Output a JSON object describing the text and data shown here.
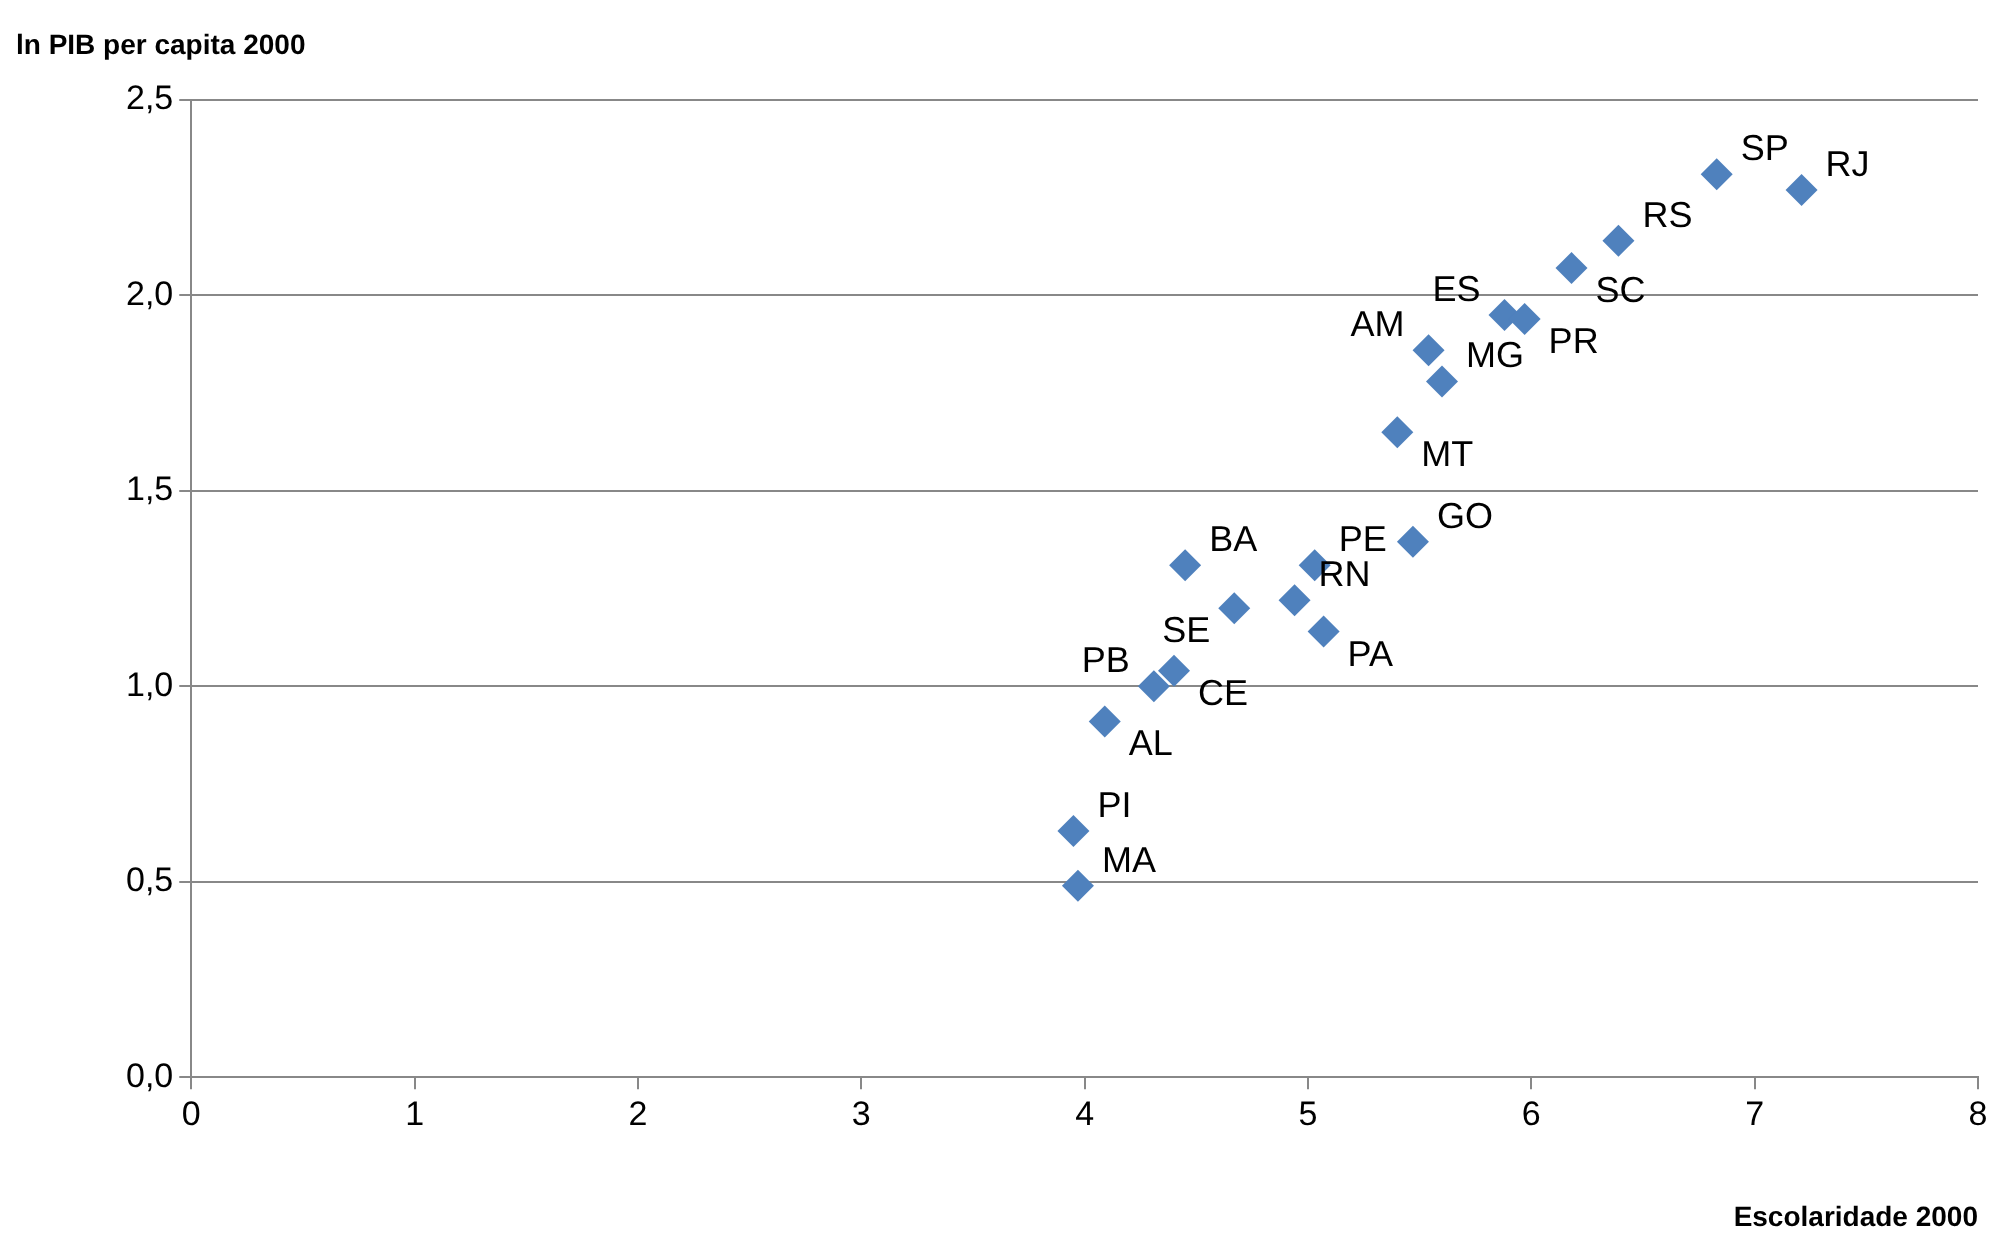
{
  "chart_data": {
    "type": "scatter",
    "xlabel": "Escolaridade 2000",
    "ylabel": "ln PIB per capita 2000",
    "series": [
      {
        "color": "#4f81bd",
        "x": [
          6.83,
          7.21,
          6.39,
          6.18,
          5.88,
          5.97,
          5.54,
          5.6,
          5.4,
          5.47,
          5.03,
          4.45,
          4.67,
          4.94,
          5.07,
          4.4,
          4.31,
          4.09,
          3.95,
          3.97
        ],
        "values": [
          2.31,
          2.27,
          2.14,
          2.07,
          1.95,
          1.94,
          1.86,
          1.78,
          1.65,
          1.37,
          1.31,
          1.31,
          1.2,
          1.22,
          1.14,
          1.04,
          1.0,
          0.91,
          0.63,
          0.49
        ]
      }
    ],
    "annotations": [
      {
        "text": "SP",
        "x": 6.83,
        "y": 2.31
      },
      {
        "text": "RJ",
        "x": 7.21,
        "y": 2.27
      },
      {
        "text": "RS",
        "x": 6.39,
        "y": 2.14
      },
      {
        "text": "SC",
        "x": 6.18,
        "y": 2.07
      },
      {
        "text": "ES",
        "x": 5.88,
        "y": 1.95
      },
      {
        "text": "PR",
        "x": 5.97,
        "y": 1.94
      },
      {
        "text": "AM",
        "x": 5.54,
        "y": 1.86
      },
      {
        "text": "MG",
        "x": 5.6,
        "y": 1.78
      },
      {
        "text": "MT",
        "x": 5.4,
        "y": 1.65
      },
      {
        "text": "GO",
        "x": 5.47,
        "y": 1.37
      },
      {
        "text": "PE",
        "x": 5.03,
        "y": 1.31
      },
      {
        "text": "BA",
        "x": 4.45,
        "y": 1.31
      },
      {
        "text": "SE",
        "x": 4.67,
        "y": 1.2
      },
      {
        "text": "RN",
        "x": 4.94,
        "y": 1.22
      },
      {
        "text": "PA",
        "x": 5.07,
        "y": 1.14
      },
      {
        "text": "CE",
        "x": 4.4,
        "y": 1.04
      },
      {
        "text": "PB",
        "x": 4.31,
        "y": 1.0
      },
      {
        "text": "AL",
        "x": 4.09,
        "y": 0.91
      },
      {
        "text": "PI",
        "x": 3.95,
        "y": 0.63
      },
      {
        "text": "MA",
        "x": 3.97,
        "y": 0.49
      }
    ],
    "xlim": [
      0,
      8
    ],
    "xticks": [
      0,
      1,
      2,
      3,
      4,
      5,
      6,
      7,
      8
    ],
    "ylim": [
      0,
      2.5
    ],
    "yticks": [
      {
        "value": 0,
        "label": "0,0"
      },
      {
        "value": 0.5,
        "label": "0,5"
      },
      {
        "value": 1,
        "label": "1,0"
      },
      {
        "value": 1.5,
        "label": "1,5"
      },
      {
        "value": 2,
        "label": "2,0"
      },
      {
        "value": 2.5,
        "label": "2,5"
      }
    ],
    "grid": "y",
    "legend": false,
    "marker": "diamond"
  }
}
